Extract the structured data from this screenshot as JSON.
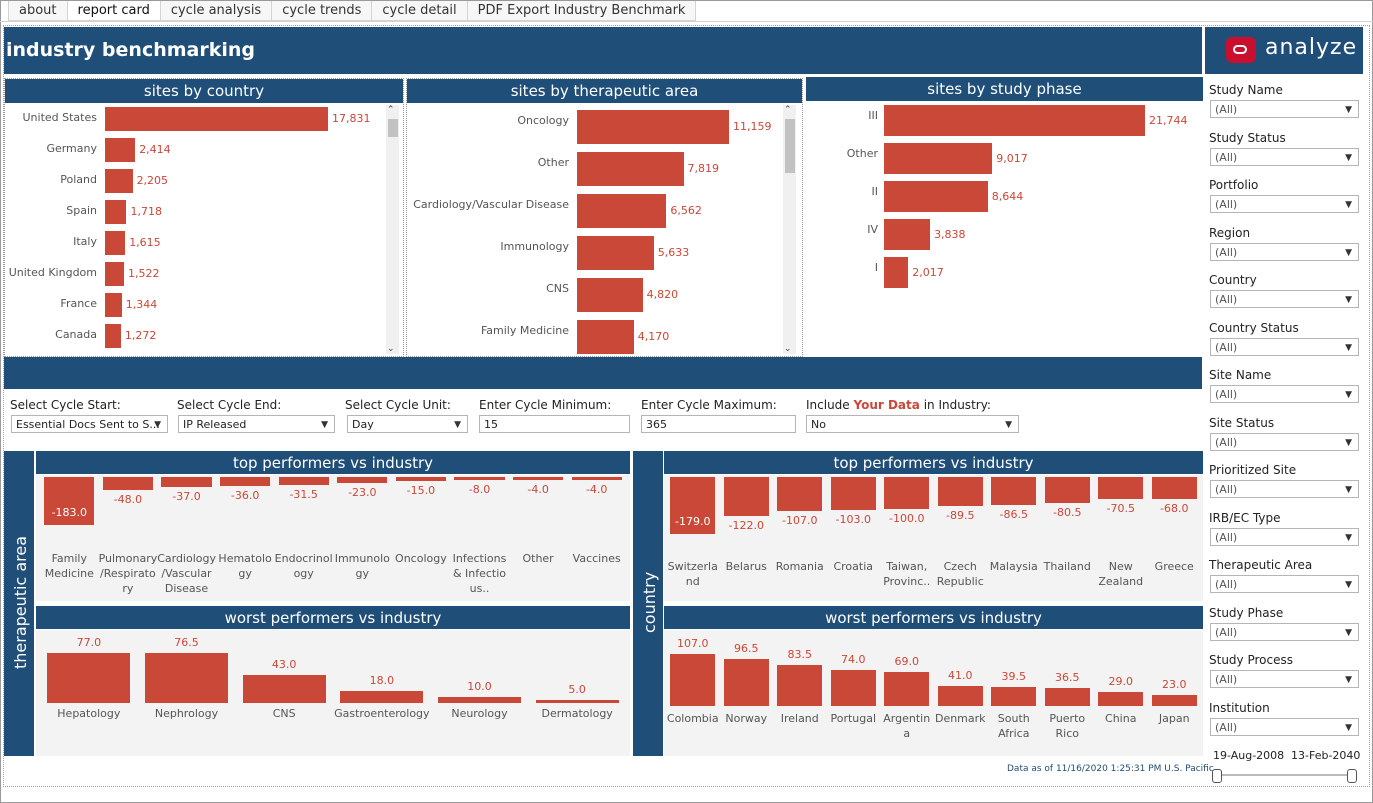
{
  "tabs": [
    "about",
    "report card",
    "cycle analysis",
    "cycle trends",
    "cycle detail",
    "PDF Export Industry Benchmark"
  ],
  "header": {
    "title": "industry benchmarking",
    "logo_text": "analyze"
  },
  "panels": {
    "country": {
      "title": "sites by country",
      "rows": [
        {
          "label": "United States",
          "value": "17,831",
          "n": 17831
        },
        {
          "label": "Germany",
          "value": "2,414",
          "n": 2414
        },
        {
          "label": "Poland",
          "value": "2,205",
          "n": 2205
        },
        {
          "label": "Spain",
          "value": "1,718",
          "n": 1718
        },
        {
          "label": "Italy",
          "value": "1,615",
          "n": 1615
        },
        {
          "label": "United Kingdom",
          "value": "1,522",
          "n": 1522
        },
        {
          "label": "France",
          "value": "1,344",
          "n": 1344
        },
        {
          "label": "Canada",
          "value": "1,272",
          "n": 1272
        }
      ]
    },
    "therapeutic": {
      "title": "sites by therapeutic area",
      "rows": [
        {
          "label": "Oncology",
          "value": "11,159",
          "n": 11159
        },
        {
          "label": "Other",
          "value": "7,819",
          "n": 7819
        },
        {
          "label": "Cardiology/Vascular Disease",
          "value": "6,562",
          "n": 6562
        },
        {
          "label": "Immunology",
          "value": "5,633",
          "n": 5633
        },
        {
          "label": "CNS",
          "value": "4,820",
          "n": 4820
        },
        {
          "label": "Family Medicine",
          "value": "4,170",
          "n": 4170
        }
      ]
    },
    "phase": {
      "title": "sites by study phase",
      "rows": [
        {
          "label": "III",
          "value": "21,744",
          "n": 21744
        },
        {
          "label": "Other",
          "value": "9,017",
          "n": 9017
        },
        {
          "label": "II",
          "value": "8,644",
          "n": 8644
        },
        {
          "label": "IV",
          "value": "3,838",
          "n": 3838
        },
        {
          "label": "I",
          "value": "2,017",
          "n": 2017
        }
      ]
    }
  },
  "controls": {
    "cycle_start": {
      "label": "Select Cycle Start:",
      "value": "Essential Docs Sent to S..."
    },
    "cycle_end": {
      "label": "Select Cycle End:",
      "value": "IP Released"
    },
    "cycle_unit": {
      "label": "Select Cycle Unit:",
      "value": "Day"
    },
    "cycle_min": {
      "label": "Enter Cycle Minimum:",
      "value": "15"
    },
    "cycle_max": {
      "label": "Enter Cycle Maximum:",
      "value": "365"
    },
    "include": {
      "label_pre": "Include ",
      "label_hl": "Your Data",
      "label_post": " in Industry:",
      "value": "No"
    }
  },
  "bench": {
    "ta_axis": "therapeutic area",
    "country_axis": "country",
    "ta_top": {
      "title": "top performers vs industry",
      "items": [
        {
          "label": "Family Medicine",
          "value": "-183.0",
          "n": -183.0
        },
        {
          "label": "Pulmonary /Respirato ry",
          "value": "-48.0",
          "n": -48.0
        },
        {
          "label": "Cardiology /Vascular Disease",
          "value": "-37.0",
          "n": -37.0
        },
        {
          "label": "Hematolo gy",
          "value": "-36.0",
          "n": -36.0
        },
        {
          "label": "Endocrinol ogy",
          "value": "-31.5",
          "n": -31.5
        },
        {
          "label": "Immunolo gy",
          "value": "-23.0",
          "n": -23.0
        },
        {
          "label": "Oncology",
          "value": "-15.0",
          "n": -15.0
        },
        {
          "label": "Infections & Infectio us..",
          "value": "-8.0",
          "n": -8.0
        },
        {
          "label": "Other",
          "value": "-4.0",
          "n": -4.0
        },
        {
          "label": "Vaccines",
          "value": "-4.0",
          "n": -4.0
        }
      ]
    },
    "ta_worst": {
      "title": "worst performers vs industry",
      "items": [
        {
          "label": "Hepatology",
          "value": "77.0",
          "n": 77.0
        },
        {
          "label": "Nephrology",
          "value": "76.5",
          "n": 76.5
        },
        {
          "label": "CNS",
          "value": "43.0",
          "n": 43.0
        },
        {
          "label": "Gastroenterology",
          "value": "18.0",
          "n": 18.0
        },
        {
          "label": "Neurology",
          "value": "10.0",
          "n": 10.0
        },
        {
          "label": "Dermatology",
          "value": "5.0",
          "n": 5.0
        }
      ]
    },
    "c_top": {
      "title": "top performers vs industry",
      "items": [
        {
          "label": "Switzerla nd",
          "value": "-179.0",
          "n": -179.0
        },
        {
          "label": "Belarus",
          "value": "-122.0",
          "n": -122.0
        },
        {
          "label": "Romania",
          "value": "-107.0",
          "n": -107.0
        },
        {
          "label": "Croatia",
          "value": "-103.0",
          "n": -103.0
        },
        {
          "label": "Taiwan, Provinc..",
          "value": "-100.0",
          "n": -100.0
        },
        {
          "label": "Czech Republic",
          "value": "-89.5",
          "n": -89.5
        },
        {
          "label": "Malaysia",
          "value": "-86.5",
          "n": -86.5
        },
        {
          "label": "Thailand",
          "value": "-80.5",
          "n": -80.5
        },
        {
          "label": "New Zealand",
          "value": "-70.5",
          "n": -70.5
        },
        {
          "label": "Greece",
          "value": "-68.0",
          "n": -68.0
        }
      ]
    },
    "c_worst": {
      "title": "worst performers vs industry",
      "items": [
        {
          "label": "Colombia",
          "value": "107.0",
          "n": 107.0
        },
        {
          "label": "Norway",
          "value": "96.5",
          "n": 96.5
        },
        {
          "label": "Ireland",
          "value": "83.5",
          "n": 83.5
        },
        {
          "label": "Portugal",
          "value": "74.0",
          "n": 74.0
        },
        {
          "label": "Argentin a",
          "value": "69.0",
          "n": 69.0
        },
        {
          "label": "Denmark",
          "value": "41.0",
          "n": 41.0
        },
        {
          "label": "South Africa",
          "value": "39.5",
          "n": 39.5
        },
        {
          "label": "Puerto Rico",
          "value": "36.5",
          "n": 36.5
        },
        {
          "label": "China",
          "value": "29.0",
          "n": 29.0
        },
        {
          "label": "Japan",
          "value": "23.0",
          "n": 23.0
        }
      ]
    }
  },
  "filters": [
    {
      "label": "Study Name",
      "value": "(All)"
    },
    {
      "label": "Study Status",
      "value": "(All)"
    },
    {
      "label": "Portfolio",
      "value": "(All)"
    },
    {
      "label": "Region",
      "value": "(All)"
    },
    {
      "label": "Country",
      "value": "(All)"
    },
    {
      "label": "Country Status",
      "value": "(All)"
    },
    {
      "label": "Site Name",
      "value": "(All)"
    },
    {
      "label": "Site Status",
      "value": "(All)"
    },
    {
      "label": "Prioritized Site",
      "value": "(All)"
    },
    {
      "label": "IRB/EC Type",
      "value": "(All)"
    },
    {
      "label": "Therapeutic Area",
      "value": "(All)"
    },
    {
      "label": "Study Phase",
      "value": "(All)"
    },
    {
      "label": "Study Process",
      "value": "(All)"
    },
    {
      "label": "Institution",
      "value": "(All)"
    }
  ],
  "date_range": {
    "start": "19-Aug-2008",
    "end": "13-Feb-2040"
  },
  "footer": "Data as of 11/16/2020 1:25:31 PM U.S. Pacific",
  "colors": {
    "navy": "#1f4e79",
    "bar": "#c94838"
  }
}
